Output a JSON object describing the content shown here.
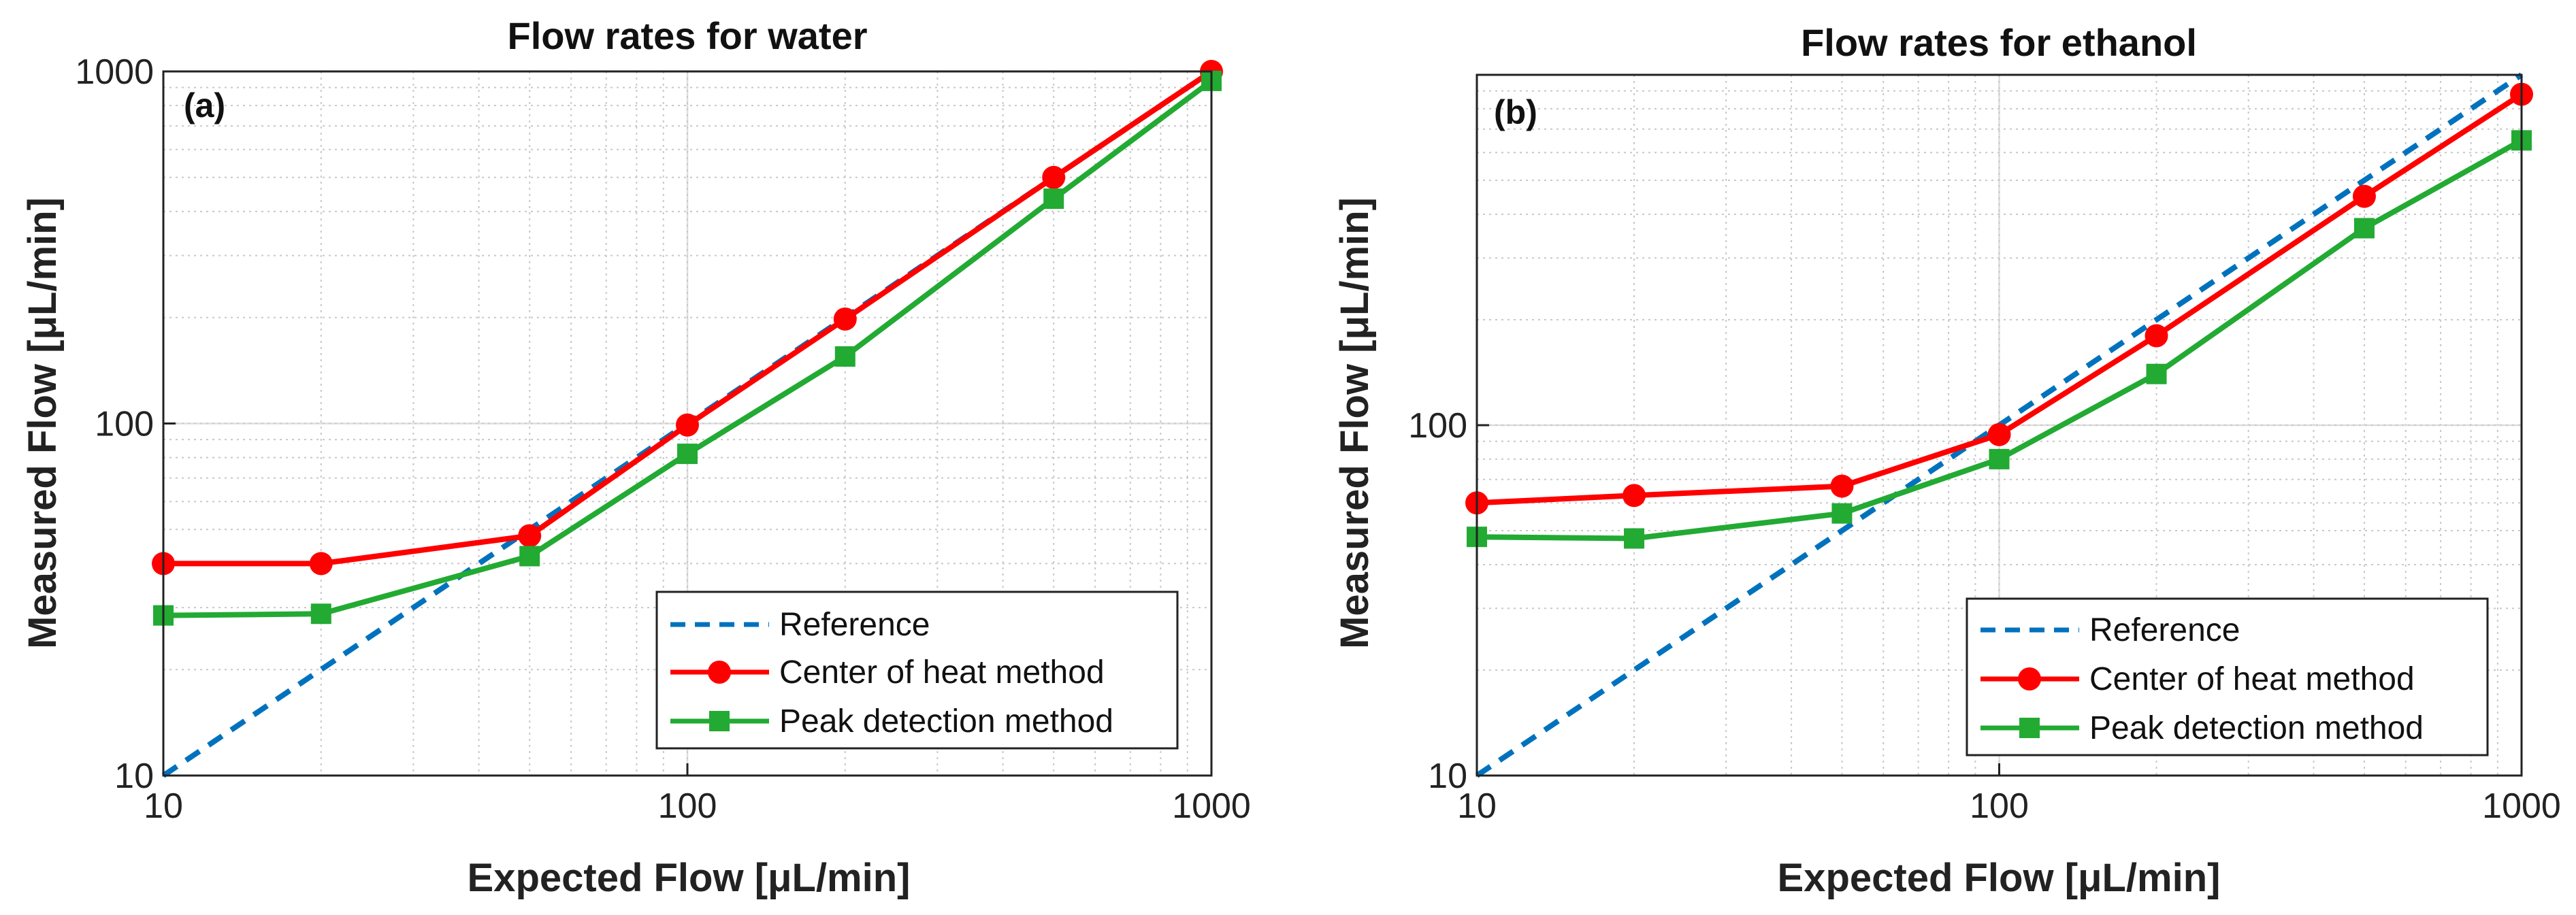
{
  "chart_data": [
    {
      "type": "line",
      "panel_label": "(a)",
      "title": "Flow rates for water",
      "xlabel": "Expected Flow [μL/min]",
      "ylabel": "Measured  Flow [μL/min]",
      "xscale": "log",
      "yscale": "log",
      "xlim": [
        10,
        1000
      ],
      "ylim": [
        10,
        1000
      ],
      "xticks": [
        10,
        100,
        1000
      ],
      "yticks": [
        10,
        100,
        1000
      ],
      "xtick_labels": [
        "10",
        "100",
        "1000"
      ],
      "ytick_labels": [
        "10",
        "100",
        "1000"
      ],
      "grid": true,
      "legend_position": "bottom-right",
      "series": [
        {
          "name": "Reference",
          "style": "dashed",
          "marker": "none",
          "color": "#0072bd",
          "x": [
            10,
            1000
          ],
          "y": [
            10,
            1000
          ]
        },
        {
          "name": "Center of heat method",
          "style": "solid",
          "marker": "circle",
          "color": "#ff0000",
          "x": [
            10,
            20,
            50,
            100,
            200,
            500,
            1000
          ],
          "y": [
            40,
            40,
            48,
            99,
            198,
            500,
            1000
          ]
        },
        {
          "name": "Peak detection method",
          "style": "solid",
          "marker": "square",
          "color": "#22aa33",
          "x": [
            10,
            20,
            50,
            100,
            200,
            500,
            1000
          ],
          "y": [
            28.5,
            28.8,
            42,
            82,
            155,
            435,
            940
          ]
        }
      ]
    },
    {
      "type": "line",
      "panel_label": "(b)",
      "title": "Flow rates for ethanol",
      "xlabel": "Expected Flow [μL/min]",
      "ylabel": "Measured  Flow [μL/min]",
      "xscale": "log",
      "yscale": "log",
      "xlim": [
        10,
        1000
      ],
      "ylim": [
        10,
        1000
      ],
      "xticks": [
        10,
        100,
        1000
      ],
      "yticks": [
        10,
        100
      ],
      "xtick_labels": [
        "10",
        "100",
        "1000"
      ],
      "ytick_labels": [
        "10",
        "100"
      ],
      "grid": true,
      "legend_position": "bottom-right",
      "series": [
        {
          "name": "Reference",
          "style": "dashed",
          "marker": "none",
          "color": "#0072bd",
          "x": [
            10,
            1000
          ],
          "y": [
            10,
            1000
          ]
        },
        {
          "name": "Center of heat method",
          "style": "solid",
          "marker": "circle",
          "color": "#ff0000",
          "x": [
            10,
            20,
            50,
            100,
            200,
            500,
            1000
          ],
          "y": [
            60,
            63,
            67,
            94,
            180,
            450,
            880
          ]
        },
        {
          "name": "Peak detection method",
          "style": "solid",
          "marker": "square",
          "color": "#22aa33",
          "x": [
            10,
            20,
            50,
            100,
            200,
            500,
            1000
          ],
          "y": [
            48,
            47.5,
            56,
            80,
            140,
            365,
            650
          ]
        }
      ]
    }
  ]
}
